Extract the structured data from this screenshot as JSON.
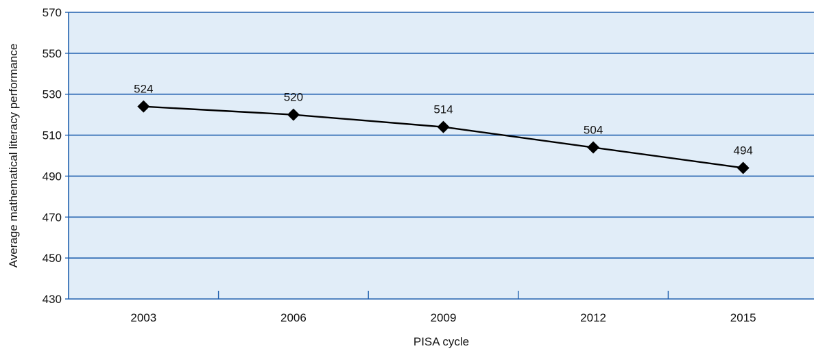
{
  "chart_data": {
    "type": "line",
    "title": "",
    "xlabel": "PISA cycle",
    "ylabel": "Average mathematical literacy performance",
    "categories": [
      "2003",
      "2006",
      "2009",
      "2012",
      "2015"
    ],
    "series": [
      {
        "values": [
          524,
          520,
          514,
          504,
          494
        ]
      }
    ],
    "data_labels": [
      "524",
      "520",
      "514",
      "504",
      "494"
    ],
    "ylim": [
      430,
      570
    ],
    "yticks": [
      430,
      450,
      470,
      490,
      510,
      530,
      550,
      570
    ],
    "ytick_labels": [
      "430",
      "450",
      "470",
      "490",
      "510",
      "530",
      "550",
      "570"
    ],
    "grid": true,
    "legend": "none",
    "marker": "diamond",
    "colors": {
      "plot_background": "#e1edf8",
      "gridlines": "#1f5fae",
      "line": "#000000"
    }
  }
}
